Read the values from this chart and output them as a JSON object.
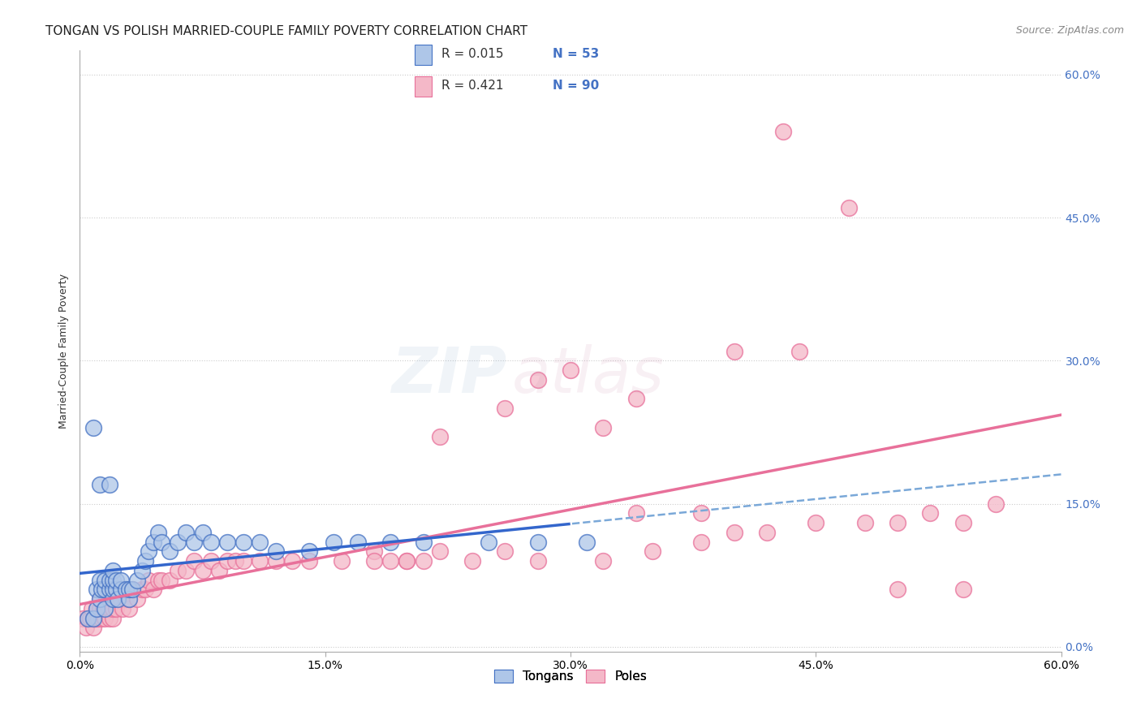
{
  "title": "TONGAN VS POLISH MARRIED-COUPLE FAMILY POVERTY CORRELATION CHART",
  "source": "Source: ZipAtlas.com",
  "ylabel": "Married-Couple Family Poverty",
  "ytick_labels": [
    "0.0%",
    "15.0%",
    "30.0%",
    "45.0%",
    "60.0%"
  ],
  "xtick_labels": [
    "0.0%",
    "15.0%",
    "30.0%",
    "45.0%",
    "60.0%"
  ],
  "tongan_color_face": "#aec6e8",
  "tongan_color_edge": "#4472c4",
  "polish_color_face": "#f4b8c8",
  "polish_color_edge": "#e8709a",
  "trend_tongan_solid": "#3366cc",
  "trend_tongan_dashed": "#7aa8d8",
  "trend_polish": "#e8709a",
  "legend_R_tongan": "R = 0.015",
  "legend_N_tongan": "N = 53",
  "legend_R_polish": "R = 0.421",
  "legend_N_polish": "N = 90",
  "legend_label_tongans": "Tongans",
  "legend_label_poles": "Poles",
  "watermark_zip": "ZIP",
  "watermark_atlas": "atlas",
  "xmin": 0.0,
  "xmax": 0.6,
  "ymin": -0.005,
  "ymax": 0.625,
  "yticks": [
    0.0,
    0.15,
    0.3,
    0.45,
    0.6
  ],
  "xticks": [
    0.0,
    0.15,
    0.3,
    0.45,
    0.6
  ],
  "tongan_x": [
    0.005,
    0.008,
    0.01,
    0.01,
    0.012,
    0.012,
    0.013,
    0.015,
    0.015,
    0.015,
    0.018,
    0.018,
    0.02,
    0.02,
    0.02,
    0.02,
    0.022,
    0.022,
    0.023,
    0.025,
    0.025,
    0.028,
    0.03,
    0.03,
    0.032,
    0.035,
    0.038,
    0.04,
    0.042,
    0.045,
    0.048,
    0.05,
    0.055,
    0.06,
    0.065,
    0.07,
    0.075,
    0.08,
    0.09,
    0.1,
    0.11,
    0.12,
    0.14,
    0.155,
    0.17,
    0.19,
    0.21,
    0.25,
    0.28,
    0.31,
    0.008,
    0.012,
    0.018
  ],
  "tongan_y": [
    0.03,
    0.03,
    0.04,
    0.06,
    0.05,
    0.07,
    0.06,
    0.04,
    0.06,
    0.07,
    0.06,
    0.07,
    0.05,
    0.06,
    0.07,
    0.08,
    0.06,
    0.07,
    0.05,
    0.06,
    0.07,
    0.06,
    0.05,
    0.06,
    0.06,
    0.07,
    0.08,
    0.09,
    0.1,
    0.11,
    0.12,
    0.11,
    0.1,
    0.11,
    0.12,
    0.11,
    0.12,
    0.11,
    0.11,
    0.11,
    0.11,
    0.1,
    0.1,
    0.11,
    0.11,
    0.11,
    0.11,
    0.11,
    0.11,
    0.11,
    0.23,
    0.17,
    0.17
  ],
  "polish_x": [
    0.002,
    0.004,
    0.005,
    0.006,
    0.007,
    0.008,
    0.008,
    0.009,
    0.01,
    0.01,
    0.011,
    0.012,
    0.012,
    0.013,
    0.014,
    0.015,
    0.015,
    0.016,
    0.017,
    0.018,
    0.018,
    0.019,
    0.02,
    0.02,
    0.021,
    0.022,
    0.023,
    0.025,
    0.026,
    0.028,
    0.03,
    0.03,
    0.032,
    0.035,
    0.038,
    0.04,
    0.042,
    0.045,
    0.048,
    0.05,
    0.055,
    0.06,
    0.065,
    0.07,
    0.075,
    0.08,
    0.085,
    0.09,
    0.095,
    0.1,
    0.11,
    0.12,
    0.13,
    0.14,
    0.16,
    0.18,
    0.2,
    0.22,
    0.24,
    0.26,
    0.28,
    0.32,
    0.35,
    0.38,
    0.4,
    0.42,
    0.45,
    0.48,
    0.5,
    0.52,
    0.54,
    0.56,
    0.32,
    0.34,
    0.28,
    0.3,
    0.4,
    0.44,
    0.5,
    0.54,
    0.34,
    0.38,
    0.26,
    0.22,
    0.2,
    0.18,
    0.43,
    0.47,
    0.19,
    0.21
  ],
  "polish_y": [
    0.03,
    0.02,
    0.03,
    0.03,
    0.04,
    0.02,
    0.03,
    0.03,
    0.03,
    0.04,
    0.03,
    0.04,
    0.05,
    0.03,
    0.04,
    0.03,
    0.04,
    0.05,
    0.04,
    0.03,
    0.04,
    0.05,
    0.03,
    0.04,
    0.05,
    0.04,
    0.05,
    0.05,
    0.04,
    0.05,
    0.04,
    0.05,
    0.06,
    0.05,
    0.06,
    0.06,
    0.07,
    0.06,
    0.07,
    0.07,
    0.07,
    0.08,
    0.08,
    0.09,
    0.08,
    0.09,
    0.08,
    0.09,
    0.09,
    0.09,
    0.09,
    0.09,
    0.09,
    0.09,
    0.09,
    0.1,
    0.09,
    0.1,
    0.09,
    0.1,
    0.09,
    0.09,
    0.1,
    0.11,
    0.12,
    0.12,
    0.13,
    0.13,
    0.13,
    0.14,
    0.13,
    0.15,
    0.23,
    0.26,
    0.28,
    0.29,
    0.31,
    0.31,
    0.06,
    0.06,
    0.14,
    0.14,
    0.25,
    0.22,
    0.09,
    0.09,
    0.54,
    0.46,
    0.09,
    0.09
  ],
  "grid_color": "#cccccc",
  "grid_linestyle": ":",
  "background_color": "#ffffff",
  "title_fontsize": 11,
  "tick_fontsize": 10,
  "ylabel_fontsize": 9,
  "source_fontsize": 9
}
